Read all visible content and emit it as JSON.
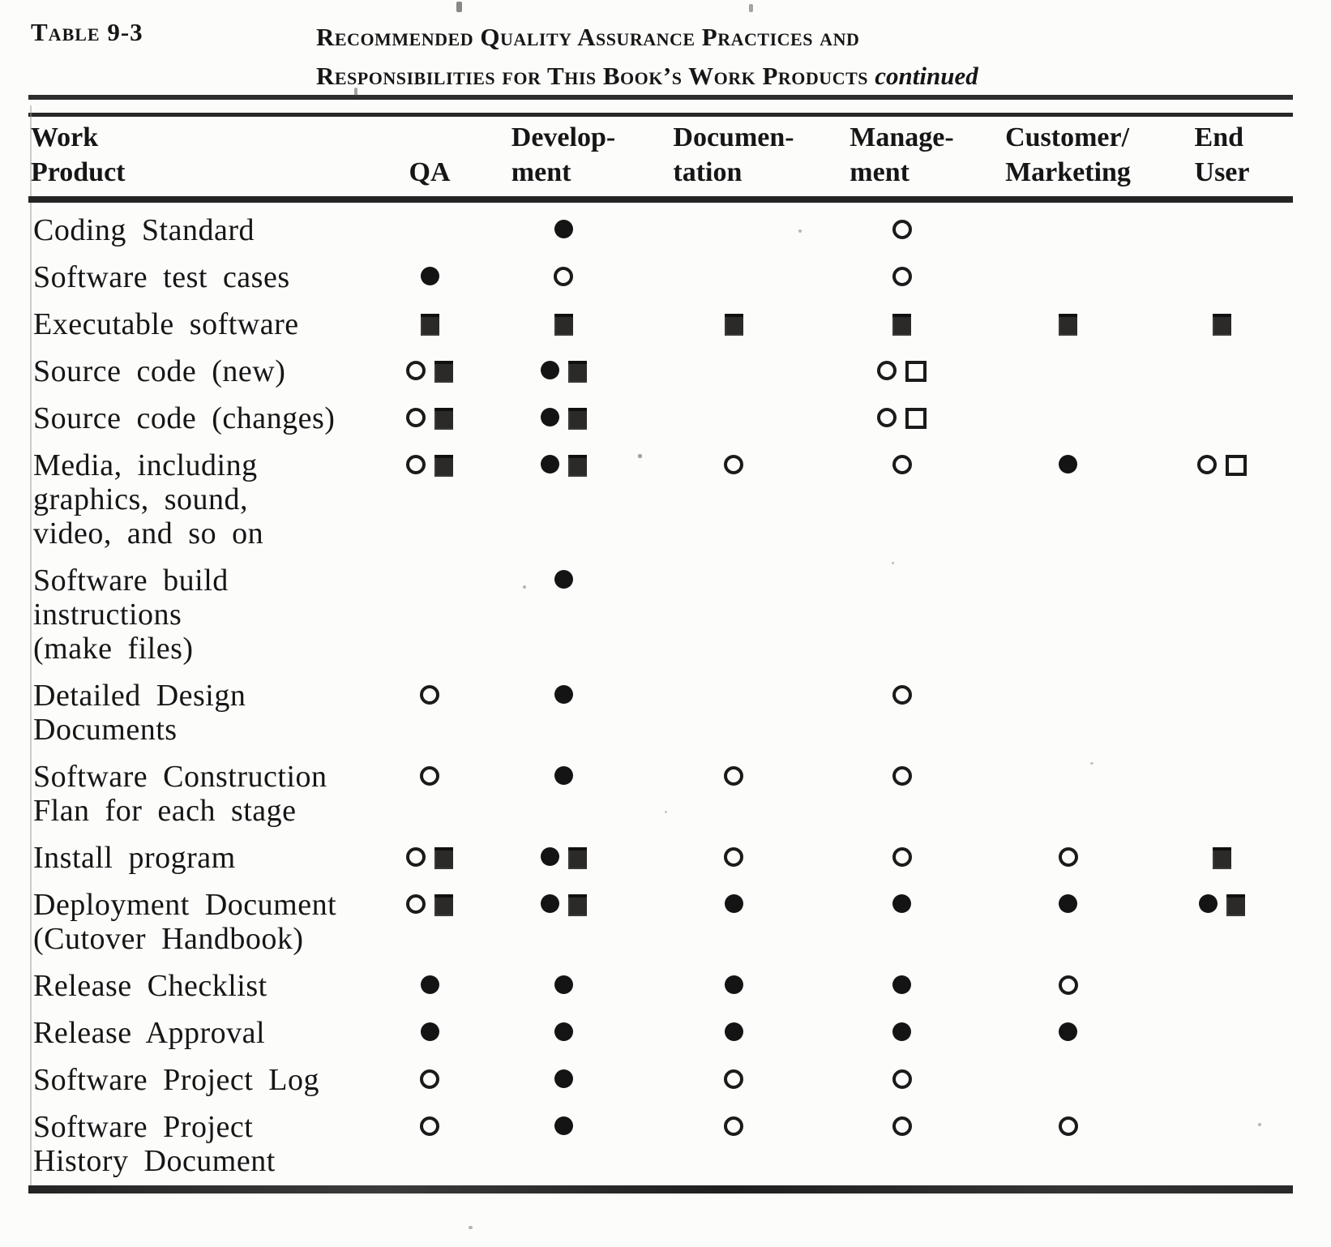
{
  "caption": {
    "table_label": "Table 9-3",
    "title_line1": "Recommended Quality Assurance Practices and",
    "title_line2": "Responsibilities for This Book’s Work Products",
    "title_continued": "continued"
  },
  "columns": [
    {
      "id": "work_product",
      "lines": [
        "Work",
        "Product"
      ]
    },
    {
      "id": "qa",
      "lines": [
        "QA"
      ]
    },
    {
      "id": "development",
      "lines": [
        "Develop-",
        "ment"
      ]
    },
    {
      "id": "documentation",
      "lines": [
        "Documen-",
        "tation"
      ]
    },
    {
      "id": "management",
      "lines": [
        "Manage-",
        "ment"
      ]
    },
    {
      "id": "customer_marketing",
      "lines": [
        "Customer/",
        "Marketing"
      ]
    },
    {
      "id": "end_user",
      "lines": [
        "End",
        "User"
      ]
    }
  ],
  "symbol_glyphs": {
    "filled-circle": "●",
    "open-circle": "○",
    "filled-square": "■",
    "open-square": "□"
  },
  "rows": [
    {
      "label_lines": [
        "Coding Standard"
      ],
      "cells": [
        [],
        [
          "filled-circle"
        ],
        [],
        [
          "open-circle"
        ],
        [],
        []
      ]
    },
    {
      "label_lines": [
        "Software test cases"
      ],
      "cells": [
        [
          "filled-circle"
        ],
        [
          "open-circle"
        ],
        [],
        [
          "open-circle"
        ],
        [],
        []
      ]
    },
    {
      "label_lines": [
        "Executable software"
      ],
      "cells": [
        [
          "filled-square"
        ],
        [
          "filled-square"
        ],
        [
          "filled-square"
        ],
        [
          "filled-square"
        ],
        [
          "filled-square"
        ],
        [
          "filled-square"
        ]
      ]
    },
    {
      "label_lines": [
        "Source code (new)"
      ],
      "cells": [
        [
          "open-circle",
          "filled-square"
        ],
        [
          "filled-circle",
          "filled-square"
        ],
        [],
        [
          "open-circle",
          "open-square"
        ],
        [],
        []
      ]
    },
    {
      "label_lines": [
        "Source code (changes)"
      ],
      "cells": [
        [
          "open-circle",
          "filled-square"
        ],
        [
          "filled-circle",
          "filled-square"
        ],
        [],
        [
          "open-circle",
          "open-square"
        ],
        [],
        []
      ]
    },
    {
      "label_lines": [
        "Media, including",
        "graphics, sound,",
        "video, and so on"
      ],
      "cells": [
        [
          "open-circle",
          "filled-square"
        ],
        [
          "filled-circle",
          "filled-square"
        ],
        [
          "open-circle"
        ],
        [
          "open-circle"
        ],
        [
          "filled-circle"
        ],
        [
          "open-circle",
          "open-square"
        ]
      ]
    },
    {
      "label_lines": [
        "Software build",
        "instructions",
        "(make files)"
      ],
      "cells": [
        [],
        [
          "filled-circle"
        ],
        [],
        [],
        [],
        []
      ]
    },
    {
      "label_lines": [
        "Detailed Design",
        "Documents"
      ],
      "cells": [
        [
          "open-circle"
        ],
        [
          "filled-circle"
        ],
        [],
        [
          "open-circle"
        ],
        [],
        []
      ]
    },
    {
      "label_lines": [
        "Software Construction",
        "Flan for each stage"
      ],
      "cells": [
        [
          "open-circle"
        ],
        [
          "filled-circle"
        ],
        [
          "open-circle"
        ],
        [
          "open-circle"
        ],
        [],
        []
      ]
    },
    {
      "label_lines": [
        "Install program"
      ],
      "cells": [
        [
          "open-circle",
          "filled-square"
        ],
        [
          "filled-circle",
          "filled-square"
        ],
        [
          "open-circle"
        ],
        [
          "open-circle"
        ],
        [
          "open-circle"
        ],
        [
          "filled-square"
        ]
      ]
    },
    {
      "label_lines": [
        "Deployment Document",
        "(Cutover Handbook)"
      ],
      "cells": [
        [
          "open-circle",
          "filled-square"
        ],
        [
          "filled-circle",
          "filled-square"
        ],
        [
          "filled-circle"
        ],
        [
          "filled-circle"
        ],
        [
          "filled-circle"
        ],
        [
          "filled-circle",
          "filled-square"
        ]
      ]
    },
    {
      "label_lines": [
        "Release Checklist"
      ],
      "cells": [
        [
          "filled-circle"
        ],
        [
          "filled-circle"
        ],
        [
          "filled-circle"
        ],
        [
          "filled-circle"
        ],
        [
          "open-circle"
        ],
        []
      ]
    },
    {
      "label_lines": [
        "Release Approval"
      ],
      "cells": [
        [
          "filled-circle"
        ],
        [
          "filled-circle"
        ],
        [
          "filled-circle"
        ],
        [
          "filled-circle"
        ],
        [
          "filled-circle"
        ],
        []
      ]
    },
    {
      "label_lines": [
        "Software Project Log"
      ],
      "cells": [
        [
          "open-circle"
        ],
        [
          "filled-circle"
        ],
        [
          "open-circle"
        ],
        [
          "open-circle"
        ],
        [],
        []
      ]
    },
    {
      "label_lines": [
        "Software Project",
        "History Document"
      ],
      "cells": [
        [
          "open-circle"
        ],
        [
          "filled-circle"
        ],
        [
          "open-circle"
        ],
        [
          "open-circle"
        ],
        [
          "open-circle"
        ],
        []
      ]
    }
  ]
}
